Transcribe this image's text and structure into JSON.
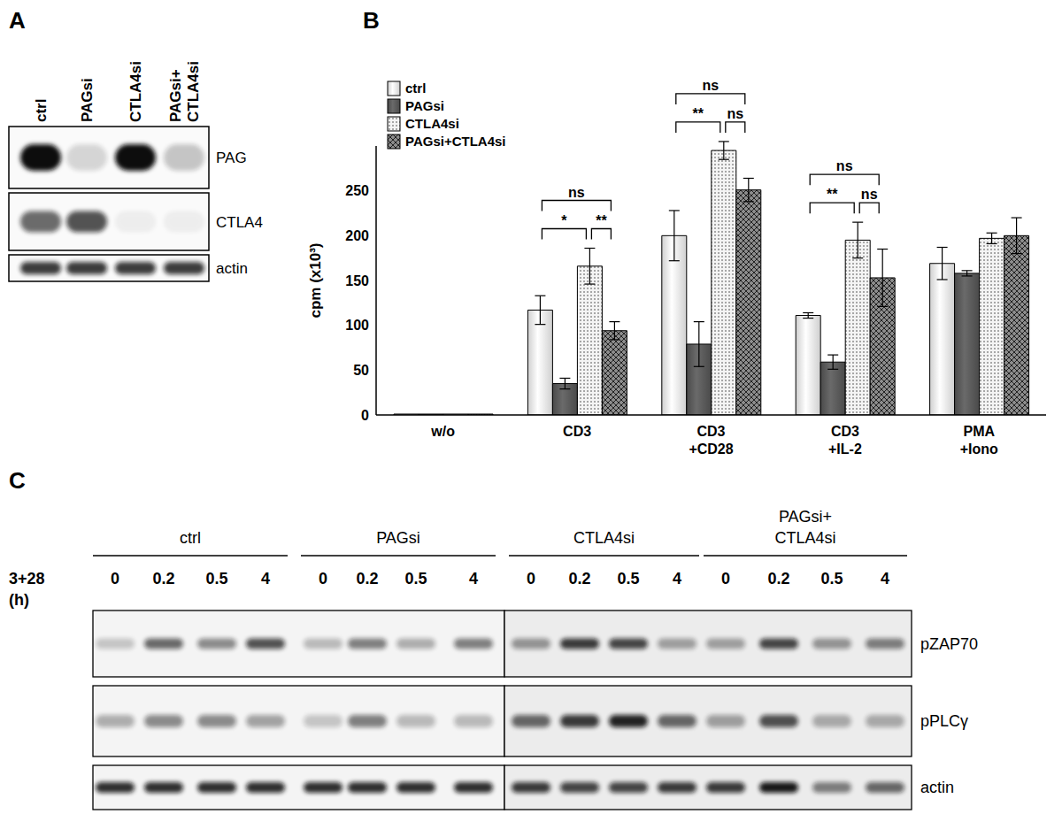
{
  "panel_labels": [
    "A",
    "B",
    "C"
  ],
  "panel_A": {
    "lanes": [
      "ctrl",
      "PAGsi",
      "CTLA4si",
      "PAGsi+\nCTLA4si"
    ],
    "blots": [
      {
        "label": "PAG",
        "band_intensity": [
          1,
          0.15,
          1,
          0.22
        ]
      },
      {
        "label": "CTLA4",
        "band_intensity": [
          0.6,
          0.7,
          0.05,
          0.05
        ]
      },
      {
        "label": "actin",
        "band_intensity": [
          0.8,
          0.8,
          0.8,
          0.8
        ]
      }
    ]
  },
  "chart_data": {
    "type": "bar",
    "y_label": "cpm (x10³)",
    "categories": [
      "w/o",
      "CD3",
      "CD3\n+CD28",
      "CD3\n+IL-2",
      "PMA\n+Iono"
    ],
    "series": [
      {
        "name": "ctrl",
        "color": "#cfcfcf",
        "values": [
          1,
          117,
          200,
          111,
          169
        ],
        "errors": [
          0,
          16,
          28,
          3,
          18
        ]
      },
      {
        "name": "PAGsi",
        "color": "#4a4a4a",
        "values": [
          1,
          35,
          79,
          59,
          158
        ],
        "errors": [
          0,
          6,
          25,
          8,
          3
        ]
      },
      {
        "name": "CTLA4si",
        "color": "#f4f4f4",
        "values": [
          1,
          166,
          295,
          195,
          197
        ],
        "errors": [
          0,
          20,
          10,
          20,
          6
        ]
      },
      {
        "name": "PAGsi+CTLA4si",
        "color": "#8c8c8c",
        "values": [
          1,
          94,
          251,
          153,
          200
        ],
        "errors": [
          0,
          10,
          13,
          32,
          20
        ]
      }
    ],
    "ylim": [
      0,
      300
    ],
    "yticks": [
      0,
      50,
      100,
      150,
      200,
      250
    ],
    "legend": "top-left",
    "significance": [
      {
        "category": "CD3",
        "from": "ctrl",
        "to": "CTLA4si",
        "label": "*"
      },
      {
        "category": "CD3",
        "from": "CTLA4si",
        "to": "PAGsi+CTLA4si",
        "label": "**"
      },
      {
        "category": "CD3",
        "from": "ctrl",
        "to": "PAGsi+CTLA4si",
        "label": "ns"
      },
      {
        "category": "CD3\n+CD28",
        "from": "ctrl",
        "to": "CTLA4si",
        "label": "**"
      },
      {
        "category": "CD3\n+CD28",
        "from": "CTLA4si",
        "to": "PAGsi+CTLA4si",
        "label": "ns"
      },
      {
        "category": "CD3\n+CD28",
        "from": "ctrl",
        "to": "PAGsi+CTLA4si",
        "label": "ns"
      },
      {
        "category": "CD3\n+IL-2",
        "from": "ctrl",
        "to": "CTLA4si",
        "label": "**"
      },
      {
        "category": "CD3\n+IL-2",
        "from": "CTLA4si",
        "to": "PAGsi+CTLA4si",
        "label": "ns"
      },
      {
        "category": "CD3\n+IL-2",
        "from": "ctrl",
        "to": "PAGsi+CTLA4si",
        "label": "ns"
      }
    ]
  },
  "panel_C": {
    "groups": [
      "ctrl",
      "PAGsi",
      "CTLA4si",
      "PAGsi+\nCTLA4si"
    ],
    "time_label": "3+28\n(h)",
    "times": [
      0,
      0.2,
      0.5,
      4
    ],
    "blots": [
      {
        "label": "pZAP70",
        "band_intensity": [
          [
            0.2,
            0.6,
            0.45,
            0.7
          ],
          [
            0.25,
            0.5,
            0.3,
            0.5
          ],
          [
            0.4,
            0.8,
            0.75,
            0.35
          ],
          [
            0.35,
            0.75,
            0.4,
            0.5
          ]
        ]
      },
      {
        "label": "pPLCγ",
        "band_intensity": [
          [
            0.3,
            0.45,
            0.45,
            0.35
          ],
          [
            0.2,
            0.5,
            0.25,
            0.25
          ],
          [
            0.6,
            0.8,
            0.9,
            0.6
          ],
          [
            0.35,
            0.7,
            0.3,
            0.3
          ]
        ]
      },
      {
        "label": "actin",
        "band_intensity": [
          [
            0.85,
            0.85,
            0.85,
            0.85
          ],
          [
            0.85,
            0.85,
            0.85,
            0.85
          ],
          [
            0.8,
            0.75,
            0.75,
            0.8
          ],
          [
            0.8,
            0.95,
            0.5,
            0.6
          ]
        ]
      }
    ]
  }
}
